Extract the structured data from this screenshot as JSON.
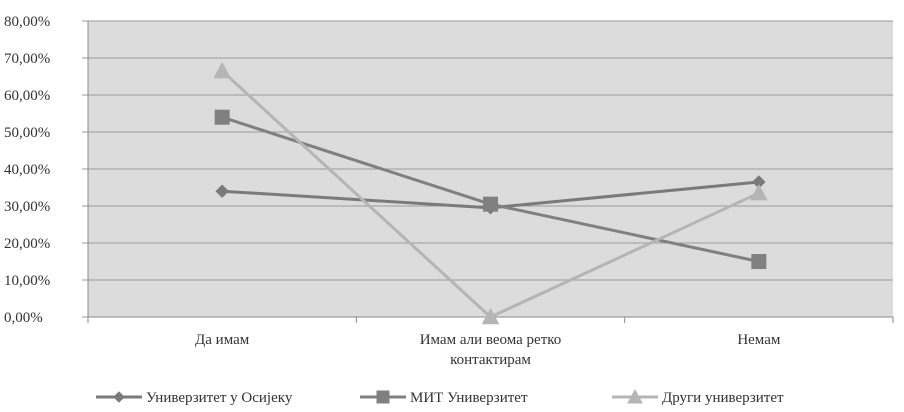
{
  "chart_data": {
    "type": "line",
    "title": "",
    "xlabel": "",
    "ylabel": "",
    "categories": [
      [
        "Да имам"
      ],
      [
        "Имам али веома ретко",
        "контактирам"
      ],
      [
        "Немам"
      ]
    ],
    "y_ticks": [
      "0,00%",
      "10,00%",
      "20,00%",
      "30,00%",
      "40,00%",
      "50,00%",
      "60,00%",
      "70,00%",
      "80,00%"
    ],
    "ylim": [
      0,
      80
    ],
    "grid": true,
    "legend_position": "bottom",
    "plot_background": "#dcdcdc",
    "series": [
      {
        "name": "Универзитет у Осијеку",
        "values": [
          34.0,
          29.5,
          36.5
        ],
        "color": "#7a7a7a",
        "marker": "diamond"
      },
      {
        "name": "МИТ Универзитет",
        "values": [
          54.0,
          30.5,
          15.0
        ],
        "color": "#808080",
        "marker": "square"
      },
      {
        "name": "Други универзитет",
        "values": [
          66.5,
          0.0,
          33.5
        ],
        "color": "#b5b5b5",
        "marker": "triangle"
      }
    ]
  }
}
